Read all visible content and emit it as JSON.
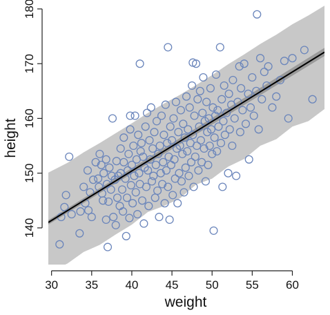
{
  "chart_data": {
    "type": "scatter",
    "xlabel": "weight",
    "ylabel": "height",
    "xlim": [
      29.6,
      64.0
    ],
    "ylim": [
      133.3,
      181.0
    ],
    "xticks": [
      30,
      35,
      40,
      45,
      50,
      55,
      60
    ],
    "yticks": [
      140,
      150,
      160,
      170,
      180
    ],
    "grid": false,
    "legend": "none",
    "colors": {
      "points": "#6a85bb",
      "line": "#000000",
      "band": "#c8c8c8",
      "ci": "#9a9a9a",
      "axis": "#222222"
    },
    "regression": {
      "x": [
        29.6,
        64.0
      ],
      "y": [
        141.0,
        172.1
      ]
    },
    "confidence_band": {
      "x": [
        29.6,
        64.0
      ],
      "lower": [
        140.6,
        171.4
      ],
      "upper": [
        141.4,
        172.9
      ]
    },
    "prediction_band": {
      "x": [
        29.6,
        32,
        34,
        36,
        38,
        40,
        42,
        44,
        46,
        48,
        50,
        52,
        54,
        56,
        58,
        60,
        62,
        64
      ],
      "lower": [
        131.8,
        133.5,
        135.6,
        136.9,
        138.8,
        140.6,
        142.9,
        144.0,
        145.4,
        147.9,
        149.0,
        151.2,
        152.6,
        155.0,
        156.2,
        158.5,
        159.5,
        161.7
      ],
      "upper": [
        150.1,
        151.9,
        153.8,
        155.5,
        157.3,
        159.1,
        161.0,
        162.7,
        164.3,
        166.1,
        167.9,
        169.9,
        171.7,
        173.6,
        175.3,
        177.2,
        178.8,
        180.6
      ]
    },
    "points": [
      [
        31.0,
        137.0
      ],
      [
        31.2,
        142.0
      ],
      [
        31.6,
        143.8
      ],
      [
        31.8,
        146.0
      ],
      [
        32.2,
        153.0
      ],
      [
        32.5,
        142.5
      ],
      [
        33.5,
        139.0
      ],
      [
        33.6,
        143.0
      ],
      [
        34.0,
        147.5
      ],
      [
        34.2,
        144.5
      ],
      [
        34.5,
        150.5
      ],
      [
        34.6,
        143.2
      ],
      [
        34.8,
        146.5
      ],
      [
        35.0,
        142.0
      ],
      [
        35.2,
        148.8
      ],
      [
        35.5,
        152.0
      ],
      [
        35.8,
        149.0
      ],
      [
        35.9,
        147.5
      ],
      [
        36.0,
        153.5
      ],
      [
        36.2,
        151.5
      ],
      [
        36.3,
        146.3
      ],
      [
        36.4,
        145.0
      ],
      [
        36.5,
        150.0
      ],
      [
        36.8,
        152.5
      ],
      [
        36.8,
        141.5
      ],
      [
        36.9,
        148.0
      ],
      [
        37.0,
        136.5
      ],
      [
        37.1,
        144.8
      ],
      [
        37.2,
        151.0
      ],
      [
        37.4,
        147.0
      ],
      [
        37.5,
        149.5
      ],
      [
        37.6,
        160.0
      ],
      [
        37.7,
        142.0
      ],
      [
        37.9,
        148.8
      ],
      [
        38.0,
        140.5
      ],
      [
        38.1,
        152.2
      ],
      [
        38.2,
        145.5
      ],
      [
        38.3,
        149.5
      ],
      [
        38.5,
        144.0
      ],
      [
        38.6,
        150.0
      ],
      [
        38.6,
        154.5
      ],
      [
        38.8,
        147.0
      ],
      [
        38.9,
        143.0
      ],
      [
        39.0,
        152.0
      ],
      [
        39.0,
        156.5
      ],
      [
        39.2,
        149.0
      ],
      [
        39.3,
        138.5
      ],
      [
        39.4,
        145.5
      ],
      [
        39.5,
        150.5
      ],
      [
        39.6,
        153.5
      ],
      [
        39.7,
        141.8
      ],
      [
        39.8,
        158.0
      ],
      [
        39.9,
        147.8
      ],
      [
        40.0,
        151.5
      ],
      [
        40.1,
        144.5
      ],
      [
        40.2,
        155.0
      ],
      [
        40.3,
        149.5
      ],
      [
        40.4,
        160.5
      ],
      [
        40.5,
        146.5
      ],
      [
        40.6,
        152.5
      ],
      [
        40.7,
        142.5
      ],
      [
        40.8,
        157.0
      ],
      [
        40.9,
        150.0
      ],
      [
        41.0,
        148.0
      ],
      [
        41.1,
        154.0
      ],
      [
        41.2,
        155.5
      ],
      [
        41.3,
        145.0
      ],
      [
        41.4,
        153.0
      ],
      [
        41.5,
        140.8
      ],
      [
        41.6,
        151.0
      ],
      [
        41.7,
        158.5
      ],
      [
        41.8,
        147.5
      ],
      [
        41.9,
        161.0
      ],
      [
        42.0,
        150.5
      ],
      [
        42.1,
        144.0
      ],
      [
        42.2,
        156.0
      ],
      [
        42.3,
        152.5
      ],
      [
        42.4,
        162.0
      ],
      [
        42.5,
        148.5
      ],
      [
        42.6,
        154.5
      ],
      [
        42.7,
        149.5
      ],
      [
        42.8,
        157.5
      ],
      [
        42.9,
        145.5
      ],
      [
        43.0,
        151.5
      ],
      [
        43.1,
        159.5
      ],
      [
        43.2,
        146.8
      ],
      [
        43.3,
        153.5
      ],
      [
        43.4,
        142.0
      ],
      [
        43.5,
        155.0
      ],
      [
        43.6,
        150.0
      ],
      [
        43.7,
        160.5
      ],
      [
        43.8,
        148.0
      ],
      [
        43.9,
        152.0
      ],
      [
        44.0,
        157.0
      ],
      [
        44.1,
        144.5
      ],
      [
        44.2,
        162.5
      ],
      [
        44.3,
        150.5
      ],
      [
        44.4,
        155.5
      ],
      [
        44.5,
        147.5
      ],
      [
        44.6,
        153.0
      ],
      [
        44.7,
        141.5
      ],
      [
        44.8,
        158.5
      ],
      [
        44.9,
        151.5
      ],
      [
        45.0,
        156.0
      ],
      [
        45.1,
        146.0
      ],
      [
        45.2,
        160.0
      ],
      [
        45.3,
        152.5
      ],
      [
        45.4,
        149.0
      ],
      [
        45.5,
        163.0
      ],
      [
        45.6,
        154.5
      ],
      [
        45.7,
        144.5
      ],
      [
        45.8,
        157.5
      ],
      [
        45.9,
        150.0
      ],
      [
        46.0,
        155.0
      ],
      [
        46.1,
        161.5
      ],
      [
        46.2,
        148.5
      ],
      [
        46.3,
        153.5
      ],
      [
        46.4,
        159.0
      ],
      [
        46.5,
        146.5
      ],
      [
        46.6,
        156.5
      ],
      [
        46.7,
        151.0
      ],
      [
        46.8,
        164.0
      ],
      [
        46.9,
        154.0
      ],
      [
        47.0,
        158.0
      ],
      [
        47.1,
        149.5
      ],
      [
        47.2,
        162.0
      ],
      [
        47.3,
        155.5
      ],
      [
        47.4,
        152.0
      ],
      [
        47.5,
        166.0
      ],
      [
        47.6,
        157.0
      ],
      [
        47.7,
        147.5
      ],
      [
        47.8,
        160.5
      ],
      [
        47.9,
        153.0
      ],
      [
        48.0,
        170.0
      ],
      [
        48.1,
        155.0
      ],
      [
        48.2,
        163.5
      ],
      [
        48.3,
        150.5
      ],
      [
        48.4,
        158.5
      ],
      [
        48.5,
        165.0
      ],
      [
        48.6,
        156.0
      ],
      [
        48.7,
        152.0
      ],
      [
        48.8,
        161.0
      ],
      [
        48.9,
        167.5
      ],
      [
        49.0,
        154.5
      ],
      [
        49.1,
        159.5
      ],
      [
        49.2,
        148.5
      ],
      [
        49.3,
        163.0
      ],
      [
        49.4,
        157.5
      ],
      [
        49.5,
        151.5
      ],
      [
        49.6,
        160.0
      ],
      [
        49.7,
        155.0
      ],
      [
        49.8,
        165.5
      ],
      [
        49.9,
        158.0
      ],
      [
        50.0,
        153.5
      ],
      [
        50.1,
        162.0
      ],
      [
        50.2,
        139.5
      ],
      [
        50.3,
        156.5
      ],
      [
        50.4,
        160.5
      ],
      [
        50.5,
        168.0
      ],
      [
        50.6,
        154.0
      ],
      [
        50.7,
        161.5
      ],
      [
        50.8,
        158.5
      ],
      [
        51.0,
        173.0
      ],
      [
        51.1,
        155.5
      ],
      [
        51.2,
        163.5
      ],
      [
        51.3,
        147.5
      ],
      [
        51.4,
        159.5
      ],
      [
        51.5,
        166.0
      ],
      [
        51.6,
        157.0
      ],
      [
        51.8,
        161.0
      ],
      [
        52.0,
        150.0
      ],
      [
        52.1,
        164.5
      ],
      [
        52.2,
        158.0
      ],
      [
        52.4,
        162.5
      ],
      [
        52.5,
        155.0
      ],
      [
        52.6,
        167.0
      ],
      [
        52.8,
        160.0
      ],
      [
        53.0,
        149.5
      ],
      [
        53.2,
        163.0
      ],
      [
        53.4,
        169.5
      ],
      [
        53.5,
        157.5
      ],
      [
        53.6,
        165.5
      ],
      [
        53.8,
        161.5
      ],
      [
        54.0,
        170.0
      ],
      [
        54.2,
        159.0
      ],
      [
        54.5,
        164.5
      ],
      [
        54.6,
        152.5
      ],
      [
        54.8,
        162.0
      ],
      [
        55.0,
        167.5
      ],
      [
        55.2,
        160.5
      ],
      [
        55.5,
        165.0
      ],
      [
        55.6,
        179.0
      ],
      [
        55.8,
        158.0
      ],
      [
        56.0,
        171.0
      ],
      [
        56.2,
        163.5
      ],
      [
        56.5,
        168.5
      ],
      [
        56.8,
        166.0
      ],
      [
        57.0,
        169.5
      ],
      [
        57.5,
        162.0
      ],
      [
        58.0,
        164.0
      ],
      [
        58.5,
        167.0
      ],
      [
        59.0,
        170.5
      ],
      [
        59.5,
        160.0
      ],
      [
        60.0,
        171.0
      ],
      [
        61.5,
        172.5
      ],
      [
        62.5,
        163.5
      ],
      [
        41.0,
        170.0
      ],
      [
        47.6,
        170.2
      ],
      [
        44.5,
        173.0
      ],
      [
        39.8,
        160.5
      ]
    ]
  }
}
